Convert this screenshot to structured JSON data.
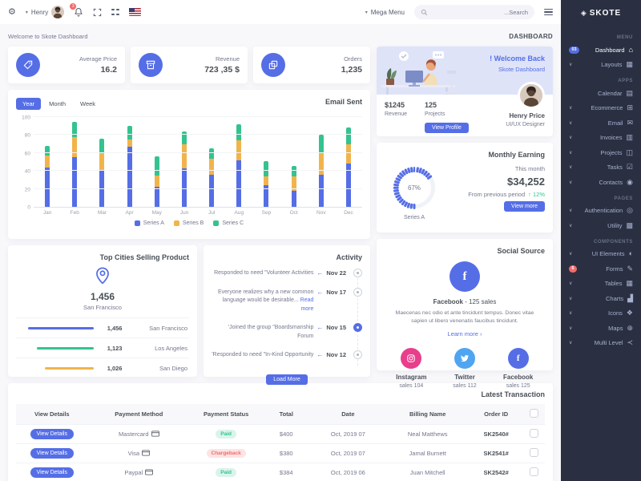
{
  "topbar": {
    "user_name": "Henry",
    "bell_badge": "3",
    "mega_menu_label": "Mega Menu",
    "search_placeholder": "...Search",
    "icons": [
      "gear-icon",
      "chevron-down-icon",
      "avatar",
      "bell-icon",
      "fullscreen-icon",
      "apps-grid-icon",
      "us-flag-icon",
      "search-icon",
      "hamburger-icon"
    ]
  },
  "sidebar": {
    "logo": "SKOTE",
    "logo_icon": "skote-logo-icon",
    "items": [
      {
        "kind": "section",
        "label": "MENU"
      },
      {
        "kind": "item",
        "label": "Dashboard",
        "icon": "home-icon",
        "glyph": "⌂",
        "active": true,
        "badge": {
          "text": "03",
          "color": "#556ee6"
        }
      },
      {
        "kind": "item",
        "label": "Layouts",
        "icon": "layout-icon",
        "glyph": "▦",
        "chevron": true
      },
      {
        "kind": "section",
        "label": "APPS"
      },
      {
        "kind": "item",
        "label": "Calendar",
        "icon": "calendar-icon",
        "glyph": "▤"
      },
      {
        "kind": "item",
        "label": "Ecommerce",
        "icon": "store-icon",
        "glyph": "⊞",
        "chevron": true
      },
      {
        "kind": "item",
        "label": "Email",
        "icon": "envelope-icon",
        "glyph": "✉",
        "chevron": true
      },
      {
        "kind": "item",
        "label": "Invoices",
        "icon": "receipt-icon",
        "glyph": "▥",
        "chevron": true
      },
      {
        "kind": "item",
        "label": "Projects",
        "icon": "briefcase-icon",
        "glyph": "◫",
        "chevron": true
      },
      {
        "kind": "item",
        "label": "Tasks",
        "icon": "task-icon",
        "glyph": "☑",
        "chevron": true
      },
      {
        "kind": "item",
        "label": "Contacts",
        "icon": "contacts-icon",
        "glyph": "◉",
        "chevron": true
      },
      {
        "kind": "section",
        "label": "PAGES"
      },
      {
        "kind": "item",
        "label": "Authentication",
        "icon": "user-circle-icon",
        "glyph": "◎",
        "chevron": true
      },
      {
        "kind": "item",
        "label": "Utility",
        "icon": "file-icon",
        "glyph": "▩",
        "chevron": true
      },
      {
        "kind": "section",
        "label": "COMPONENTS"
      },
      {
        "kind": "item",
        "label": "UI Elements",
        "icon": "tone-icon",
        "glyph": "◐",
        "chevron": true
      },
      {
        "kind": "item",
        "label": "Forms",
        "icon": "pencil-icon",
        "glyph": "✎",
        "badge": {
          "text": "6",
          "color": "#f46a6a"
        }
      },
      {
        "kind": "item",
        "label": "Tables",
        "icon": "table-icon",
        "glyph": "▦",
        "chevron": true
      },
      {
        "kind": "item",
        "label": "Charts",
        "icon": "chart-icon",
        "glyph": "▟",
        "chevron": true
      },
      {
        "kind": "item",
        "label": "Icons",
        "icon": "icons-icon",
        "glyph": "❖",
        "chevron": true
      },
      {
        "kind": "item",
        "label": "Maps",
        "icon": "map-pin-icon",
        "glyph": "⊕",
        "chevron": true
      },
      {
        "kind": "item",
        "label": "Multi Level",
        "icon": "share-icon",
        "glyph": "≺",
        "chevron": true
      }
    ]
  },
  "page": {
    "welcome": "Welcome to Skote Dashboard",
    "breadcrumb": "DASHBOARD"
  },
  "stats": [
    {
      "label": "Average Price",
      "value": "16.2",
      "icon": "tag-icon"
    },
    {
      "label": "Revenue",
      "value": "723 ,35 $",
      "icon": "archive-icon"
    },
    {
      "label": "Orders",
      "value": "1,235",
      "icon": "copy-icon"
    }
  ],
  "welcome_card": {
    "greeting": "! Welcome Back",
    "subtitle": "Skote Dashboard",
    "revenue_value": "$1245",
    "revenue_label": "Revenue",
    "projects_value": "125",
    "projects_label": "Projects",
    "button": "View Profile",
    "user_name": "Henry Price",
    "user_role": "UI/UX Designer"
  },
  "email_sent": {
    "title": "Email Sent",
    "tabs": [
      {
        "label": "Year",
        "active": true
      },
      {
        "label": "Month",
        "active": false
      },
      {
        "label": "Week",
        "active": false
      }
    ]
  },
  "monthly_earning": {
    "title": "Monthly Earning",
    "period_label": "This month",
    "amount": "$34,252",
    "compare_text": "From previous period",
    "delta": "↑ 12%",
    "button": "View more",
    "gauge_value": "67%",
    "gauge_label": "Series A"
  },
  "top_cities": {
    "title": "Top Cities Selling Product",
    "big_value": "1,456",
    "big_city": "San Francisco"
  },
  "activity": {
    "title": "Activity",
    "load_more": "Load More",
    "items": [
      {
        "text": "Responded to need \"Volunteer Activities",
        "date": "Nov 22",
        "active": false
      },
      {
        "text": "Everyone realizes why a new common language would be desirable... ",
        "link": "Read more",
        "date": "Nov 17",
        "active": false
      },
      {
        "text": "'Joined the group \"Boardsmanship Forum",
        "date": "Nov 15",
        "active": true
      },
      {
        "text": "'Responded to need \"In-Kind Opportunity",
        "date": "Nov 12",
        "active": false
      }
    ]
  },
  "social": {
    "title": "Social Source",
    "main_name": "Facebook",
    "main_sales": "- 125 sales",
    "desc": "Maecenas nec odio et ante tincidunt tempus. Donec vitae sapien ut libero venenatis faucibus tincidunt.",
    "learn_more": "Learn more ›",
    "accounts": [
      {
        "name": "Instagram",
        "sales": "sales 104",
        "color": "#e83e8c",
        "icon": "instagram-icon"
      },
      {
        "name": "Twitter",
        "sales": "sales 112",
        "color": "#50a5f1",
        "icon": "twitter-icon"
      },
      {
        "name": "Facebook",
        "sales": "sales 125",
        "color": "#556ee6",
        "icon": "facebook-icon"
      }
    ]
  },
  "transactions": {
    "title": "Latest Transaction",
    "columns": [
      "View Details",
      "Payment Method",
      "Payment Status",
      "Total",
      "Date",
      "Billing Name",
      "Order ID"
    ],
    "button_label": "View Details",
    "rows": [
      {
        "method": "Mastercard",
        "method_icon": "mastercard-icon",
        "status": "Paid",
        "status_kind": "success",
        "total": "$400",
        "date": "Oct, 2019 07",
        "name": "Neal Matthews",
        "order": "SK2540#"
      },
      {
        "method": "Visa",
        "method_icon": "visa-icon",
        "status": "Chargeback",
        "status_kind": "danger",
        "total": "$380",
        "date": "Oct, 2019 07",
        "name": "Jamal Burnett",
        "order": "SK2541#"
      },
      {
        "method": "Paypal",
        "method_icon": "paypal-icon",
        "status": "Paid",
        "status_kind": "success",
        "total": "$384",
        "date": "Oct, 2019 06",
        "name": "Juan Mitchell",
        "order": "SK2542#"
      },
      {
        "method": "Mastercard",
        "method_icon": "mastercard-icon",
        "status": "Paid",
        "status_kind": "success",
        "total": "$412",
        "date": "Oct, 2019 05",
        "name": "Barry Dick",
        "order": "SK2543#"
      }
    ]
  },
  "chart_data": [
    {
      "id": "email_sent",
      "type": "bar",
      "stacked": true,
      "title": "Email Sent",
      "categories": [
        "Jan",
        "Feb",
        "Mar",
        "Apr",
        "May",
        "Jun",
        "Jul",
        "Aug",
        "Sep",
        "Oct",
        "Nov",
        "Dec"
      ],
      "series": [
        {
          "name": "Series A",
          "color": "#556ee6",
          "values": [
            44,
            55,
            41,
            67,
            22,
            43,
            36,
            52,
            24,
            18,
            36,
            48
          ]
        },
        {
          "name": "Series B",
          "color": "#f1b44c",
          "values": [
            13,
            23,
            20,
            8,
            13,
            27,
            18,
            22,
            10,
            16,
            24,
            22
          ]
        },
        {
          "name": "Series C",
          "color": "#34c38f",
          "values": [
            11,
            17,
            15,
            15,
            21,
            14,
            11,
            18,
            17,
            12,
            20,
            18
          ]
        }
      ],
      "ylim": [
        0,
        100
      ],
      "yticks": [
        0,
        20,
        40,
        60,
        80,
        100
      ],
      "grid": true,
      "legend_position": "bottom"
    },
    {
      "id": "monthly_earning_radial",
      "type": "radial",
      "value": 67,
      "label": "Series A",
      "color": "#556ee6",
      "track_color": "#eff2f7"
    },
    {
      "id": "top_cities_bars",
      "type": "bar",
      "categories": [
        "San Francisco",
        "Los Angeles",
        "San Diego"
      ],
      "values": [
        1456,
        1123,
        1026
      ],
      "display_values": [
        "1,456",
        "1,123",
        "1,026"
      ],
      "colors": [
        "#556ee6",
        "#34c38f",
        "#f1b44c"
      ],
      "progress_pct": [
        94,
        82,
        70
      ]
    }
  ]
}
